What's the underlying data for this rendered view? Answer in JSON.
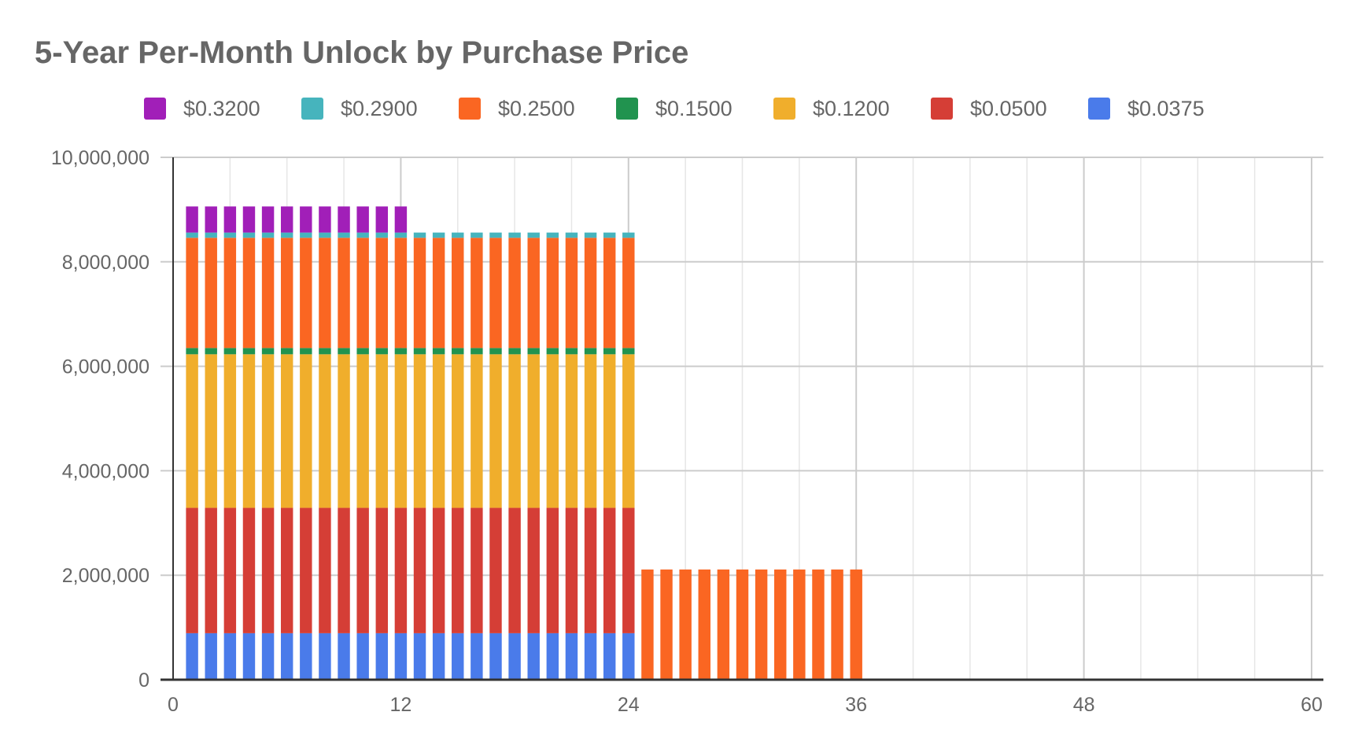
{
  "chart_data": {
    "type": "bar",
    "stacked": true,
    "title": "5-Year Per-Month Unlock by Purchase Price",
    "xlabel": "",
    "ylabel": "",
    "xlim": [
      0,
      60
    ],
    "ylim": [
      0,
      10000000
    ],
    "x_ticks": [
      "0",
      "12",
      "24",
      "36",
      "48",
      "60"
    ],
    "y_ticks": [
      "0",
      "2,000,000",
      "4,000,000",
      "6,000,000",
      "8,000,000",
      "10,000,000"
    ],
    "grid": true,
    "legend_position": "top",
    "series": [
      {
        "name": "$0.0375",
        "color": "#4a7bea",
        "ranges": [
          {
            "from": 1,
            "to": 24,
            "value": 890000
          }
        ]
      },
      {
        "name": "$0.0500",
        "color": "#d53e36",
        "ranges": [
          {
            "from": 1,
            "to": 24,
            "value": 2400000
          }
        ]
      },
      {
        "name": "$0.1200",
        "color": "#f0ae2c",
        "ranges": [
          {
            "from": 1,
            "to": 24,
            "value": 2940000
          }
        ]
      },
      {
        "name": "$0.1500",
        "color": "#21934f",
        "ranges": [
          {
            "from": 1,
            "to": 24,
            "value": 120000
          }
        ]
      },
      {
        "name": "$0.2500",
        "color": "#fa6622",
        "ranges": [
          {
            "from": 1,
            "to": 36,
            "value": 2110000
          }
        ]
      },
      {
        "name": "$0.2900",
        "color": "#46b4bd",
        "ranges": [
          {
            "from": 1,
            "to": 24,
            "value": 100000
          }
        ]
      },
      {
        "name": "$0.3200",
        "color": "#a11fb8",
        "ranges": [
          {
            "from": 1,
            "to": 12,
            "value": 500000
          }
        ]
      }
    ],
    "legend_order": [
      "$0.3200",
      "$0.2900",
      "$0.2500",
      "$0.1500",
      "$0.1200",
      "$0.0500",
      "$0.0375"
    ]
  }
}
